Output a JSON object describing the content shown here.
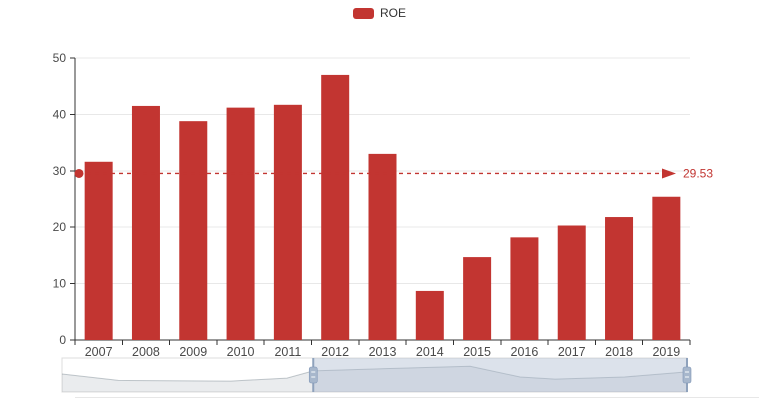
{
  "chart_data": {
    "type": "bar",
    "title": "",
    "xlabel": "",
    "ylabel": "",
    "categories": [
      "2007",
      "2008",
      "2009",
      "2010",
      "2011",
      "2012",
      "2013",
      "2014",
      "2015",
      "2016",
      "2017",
      "2018",
      "2019"
    ],
    "series": [
      {
        "name": "ROE",
        "color": "#c23531",
        "values": [
          31.6,
          41.5,
          38.8,
          41.2,
          41.7,
          47.0,
          33.0,
          8.7,
          14.7,
          18.2,
          20.3,
          21.8,
          25.4
        ]
      }
    ],
    "ylim": [
      0,
      50
    ],
    "yticks": [
      0,
      10,
      20,
      30,
      40,
      50
    ],
    "grid": true,
    "legend_position": "top-center",
    "markline": {
      "value": 29.53,
      "label": "29.53",
      "style": "dashed",
      "color": "#c23531",
      "start_symbol": "circle",
      "end_symbol": "arrow"
    }
  },
  "navigator": {
    "type": "datazoom-slider",
    "window_start_pct": 40.2,
    "window_end_pct": 100,
    "shadow_profile": [
      [
        0.0,
        0.53
      ],
      [
        0.09,
        0.34
      ],
      [
        0.27,
        0.32
      ],
      [
        0.36,
        0.41
      ],
      [
        0.402,
        0.62
      ],
      [
        0.525,
        0.69
      ],
      [
        0.653,
        0.76
      ],
      [
        0.733,
        0.44
      ],
      [
        0.789,
        0.38
      ],
      [
        0.9,
        0.44
      ],
      [
        1.0,
        0.59
      ]
    ]
  },
  "colors": {
    "bar": "#c23531",
    "axis_line": "#333333",
    "axis_label": "#4a4a4a",
    "gridline": "#e8e8e8",
    "markline": "#c23531",
    "navigator_border": "#dcdcdc",
    "navigator_shadow_fill": "rgba(47,69,84,0.10)",
    "navigator_shadow_line": "rgba(47,69,84,0.28)",
    "navigator_filler": "rgba(167,183,204,0.40)",
    "navigator_edge_line": "#8fa2bc",
    "navigator_handle": "#a7b7cc",
    "navigator_handle_border": "#7d94b5",
    "navigator_handle_grip": "#e2e8f0",
    "bottom_divider": "#e7e7e7"
  }
}
